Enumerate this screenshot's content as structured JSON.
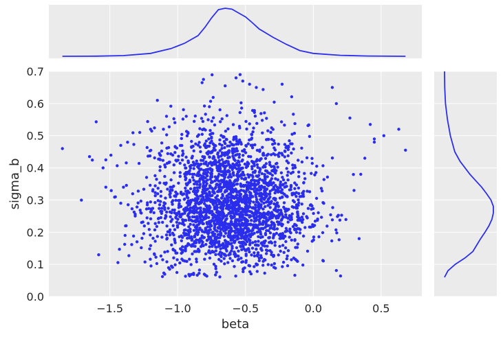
{
  "chart_data": {
    "type": "scatter",
    "xlabel": "beta",
    "ylabel": "sigma_b",
    "xlim": [
      -1.95,
      0.8
    ],
    "ylim": [
      0.0,
      0.7
    ],
    "x_ticks": [
      "−1.5",
      "−1.0",
      "−0.5",
      "0.0",
      "0.5"
    ],
    "x_tick_values": [
      -1.5,
      -1.0,
      -0.5,
      0.0,
      0.5
    ],
    "y_ticks": [
      "0.0",
      "0.1",
      "0.2",
      "0.3",
      "0.4",
      "0.5",
      "0.6",
      "0.7"
    ],
    "y_tick_values": [
      0.0,
      0.1,
      0.2,
      0.3,
      0.4,
      0.5,
      0.6,
      0.7
    ],
    "grid": true,
    "background": "#ebebeb",
    "point_color": "#2a2eec",
    "marginal_x_density": {
      "type": "line",
      "x": [
        -1.85,
        -1.6,
        -1.4,
        -1.2,
        -1.05,
        -0.95,
        -0.85,
        -0.8,
        -0.75,
        -0.7,
        -0.65,
        -0.6,
        -0.55,
        -0.5,
        -0.45,
        -0.4,
        -0.3,
        -0.2,
        -0.1,
        0.0,
        0.2,
        0.4,
        0.68
      ],
      "density": [
        0.0,
        0.003,
        0.015,
        0.06,
        0.16,
        0.27,
        0.43,
        0.6,
        0.8,
        0.97,
        1.0,
        0.98,
        0.9,
        0.82,
        0.7,
        0.57,
        0.4,
        0.25,
        0.12,
        0.06,
        0.02,
        0.006,
        0.0
      ]
    },
    "marginal_y_density": {
      "type": "line",
      "y": [
        0.06,
        0.08,
        0.1,
        0.12,
        0.14,
        0.16,
        0.18,
        0.2,
        0.22,
        0.24,
        0.26,
        0.28,
        0.3,
        0.32,
        0.34,
        0.36,
        0.38,
        0.4,
        0.42,
        0.45,
        0.5,
        0.55,
        0.6,
        0.65,
        0.7
      ],
      "density": [
        0.0,
        0.07,
        0.22,
        0.42,
        0.58,
        0.66,
        0.74,
        0.83,
        0.91,
        0.97,
        1.0,
        1.0,
        0.95,
        0.86,
        0.76,
        0.64,
        0.52,
        0.42,
        0.32,
        0.21,
        0.12,
        0.06,
        0.02,
        0.004,
        0.0
      ]
    },
    "scatter": {
      "n": 2500,
      "center_x": -0.62,
      "center_y": 0.28,
      "sd_x": 0.29,
      "sd_y": 0.1,
      "x_range": [
        -1.85,
        0.68
      ],
      "y_range": [
        0.06,
        0.69
      ],
      "outliers": [
        [
          -1.85,
          0.46
        ],
        [
          -1.65,
          0.435
        ],
        [
          -1.55,
          0.4
        ],
        [
          -1.53,
          0.425
        ],
        [
          -1.53,
          0.34
        ],
        [
          -1.42,
          0.47
        ],
        [
          -1.4,
          0.34
        ],
        [
          -1.42,
          0.29
        ],
        [
          -1.38,
          0.22
        ],
        [
          -1.3,
          0.17
        ],
        [
          -1.15,
          0.61
        ],
        [
          -0.82,
          0.665
        ],
        [
          -0.81,
          0.675
        ],
        [
          -0.65,
          0.655
        ],
        [
          -0.57,
          0.68
        ],
        [
          -0.54,
          0.69
        ],
        [
          -0.52,
          0.67
        ],
        [
          -0.47,
          0.66
        ],
        [
          -0.42,
          0.65
        ],
        [
          -0.23,
          0.66
        ],
        [
          0.14,
          0.65
        ],
        [
          0.17,
          0.6
        ],
        [
          0.27,
          0.555
        ],
        [
          0.42,
          0.535
        ],
        [
          0.45,
          0.49
        ],
        [
          0.52,
          0.5
        ],
        [
          0.63,
          0.52
        ],
        [
          0.68,
          0.455
        ],
        [
          0.38,
          0.43
        ],
        [
          0.35,
          0.38
        ],
        [
          0.3,
          0.33
        ],
        [
          0.45,
          0.48
        ],
        [
          -1.2,
          0.52
        ],
        [
          -1.28,
          0.51
        ]
      ]
    }
  }
}
